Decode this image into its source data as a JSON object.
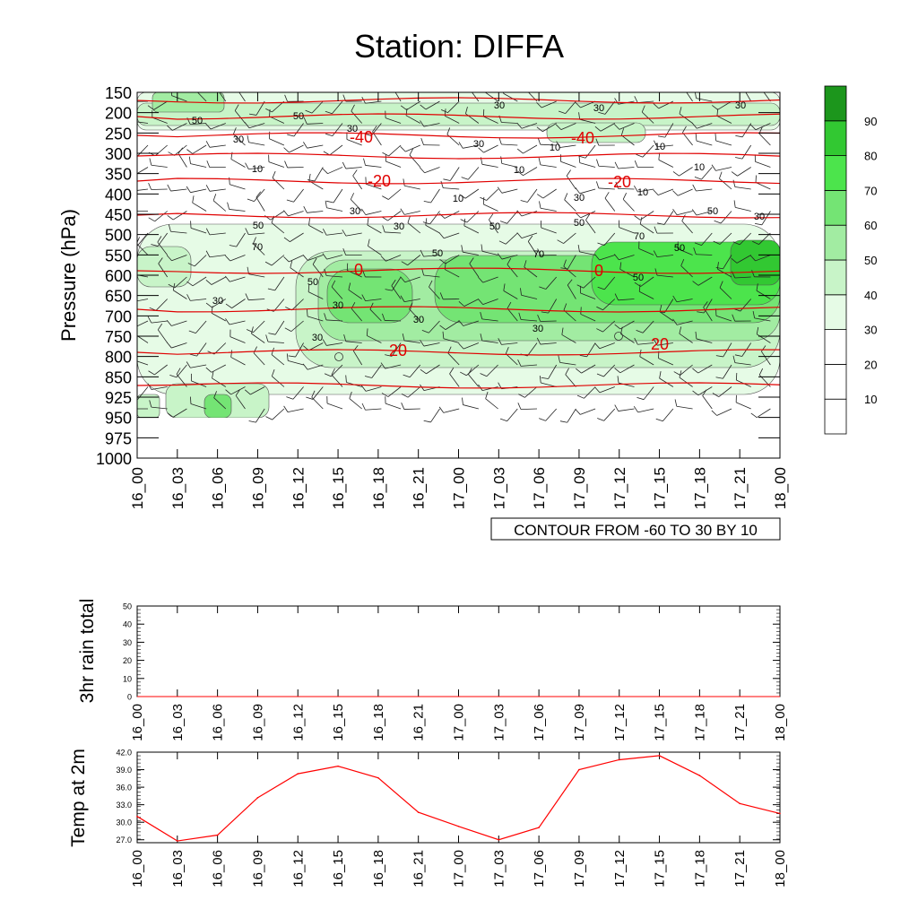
{
  "title": "Station: DIFFA",
  "chart_data": [
    {
      "type": "contour",
      "name": "sounding",
      "ylabel": "Pressure (hPa)",
      "y_ticks": [
        "150",
        "200",
        "250",
        "300",
        "350",
        "400",
        "450",
        "500",
        "550",
        "600",
        "650",
        "700",
        "750",
        "800",
        "850",
        "925",
        "950",
        "975",
        "1000"
      ],
      "x_ticks": [
        "16_00",
        "16_03",
        "16_06",
        "16_09",
        "16_12",
        "16_15",
        "16_18",
        "16_21",
        "17_00",
        "17_03",
        "17_06",
        "17_09",
        "17_12",
        "17_15",
        "17_18",
        "17_21",
        "18_00"
      ],
      "footnote": "CONTOUR FROM -60 TO 30 BY 10",
      "colorbar": {
        "labels": [
          "10",
          "20",
          "30",
          "40",
          "50",
          "60",
          "70",
          "80",
          "90"
        ],
        "colors": [
          "#ffffff",
          "#ffffff",
          "#ffffff",
          "#e6fbe6",
          "#c8f4c8",
          "#a2eca2",
          "#74e474",
          "#4ce44c",
          "#32c832",
          "#1c961c"
        ]
      },
      "rh_labels": [
        "50",
        "50",
        "30",
        "30",
        "30",
        "30",
        "30",
        "30",
        "10",
        "10",
        "10",
        "10",
        "10",
        "10",
        "30",
        "10",
        "30",
        "50",
        "30",
        "50",
        "70",
        "50",
        "70",
        "70",
        "50",
        "30",
        "50",
        "50",
        "50",
        "50",
        "30",
        "30",
        "30",
        "30",
        "30"
      ],
      "temperature_labels": [
        "-40",
        "-40",
        "-20",
        "-20",
        "0",
        "0",
        "20",
        "20"
      ]
    },
    {
      "type": "line",
      "name": "rain",
      "ylabel": "3hr rain total",
      "ylim": [
        0,
        50
      ],
      "y_ticks": [
        "0",
        "10",
        "20",
        "30",
        "40",
        "50"
      ],
      "x_ticks": [
        "16_00",
        "16_03",
        "16_06",
        "16_09",
        "16_12",
        "16_15",
        "16_18",
        "16_21",
        "17_00",
        "17_03",
        "17_06",
        "17_09",
        "17_12",
        "17_15",
        "17_18",
        "17_21",
        "18_00"
      ],
      "values": [
        0,
        0,
        0,
        0,
        0,
        0,
        0,
        0,
        0,
        0,
        0,
        0,
        0,
        0,
        0,
        0,
        0
      ]
    },
    {
      "type": "line",
      "name": "temperature",
      "ylabel": "Temp at 2m",
      "ylim": [
        26.5,
        42.0
      ],
      "y_ticks": [
        "27.0",
        "30.0",
        "33.0",
        "36.0",
        "39.0",
        "42.0"
      ],
      "x_ticks": [
        "16_00",
        "16_03",
        "16_06",
        "16_09",
        "16_12",
        "16_15",
        "16_18",
        "16_21",
        "17_00",
        "17_03",
        "17_06",
        "17_09",
        "17_12",
        "17_15",
        "17_18",
        "17_21",
        "18_00"
      ],
      "values": [
        31.0,
        26.8,
        27.8,
        34.2,
        38.3,
        39.6,
        37.6,
        31.7,
        29.3,
        27.0,
        29.1,
        39.0,
        40.7,
        41.4,
        38.0,
        33.2,
        31.5
      ],
      "line_color": "#ff0000"
    }
  ]
}
